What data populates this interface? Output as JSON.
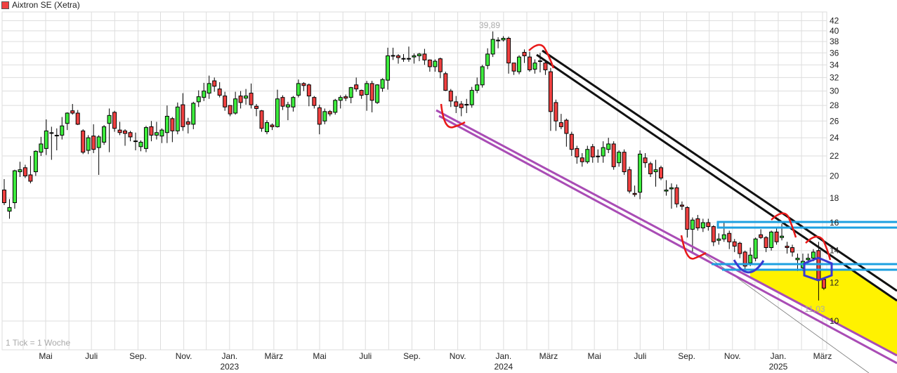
{
  "chart_data": {
    "type": "candlestick",
    "title": "Aixtron SE (Xetra)",
    "interval_note": "1 Tick = 1 Woche",
    "y_scale": "log",
    "ylim": [
      8.6,
      43
    ],
    "grid": true,
    "colors": {
      "up": "#3ded3d",
      "down": "#f04040",
      "legend": "#f04040"
    },
    "y_ticks": [
      42,
      40,
      38,
      36,
      34,
      32,
      30,
      28,
      26,
      24,
      22,
      20,
      18,
      16,
      14,
      12,
      10
    ],
    "x_ticks": [
      {
        "label": "Mai",
        "date": "2022-05",
        "year": ""
      },
      {
        "label": "Juli",
        "date": "2022-07",
        "year": ""
      },
      {
        "label": "Sep.",
        "date": "2022-09",
        "year": ""
      },
      {
        "label": "Nov.",
        "date": "2022-11",
        "year": ""
      },
      {
        "label": "Jan.",
        "date": "2023-01",
        "year": "2023"
      },
      {
        "label": "März",
        "date": "2023-03",
        "year": ""
      },
      {
        "label": "Mai",
        "date": "2023-05",
        "year": ""
      },
      {
        "label": "Juli",
        "date": "2023-07",
        "year": ""
      },
      {
        "label": "Sep.",
        "date": "2023-09",
        "year": ""
      },
      {
        "label": "Nov.",
        "date": "2023-11",
        "year": ""
      },
      {
        "label": "Jan.",
        "date": "2024-01",
        "year": "2024"
      },
      {
        "label": "März",
        "date": "2024-03",
        "year": ""
      },
      {
        "label": "Mai",
        "date": "2024-05",
        "year": ""
      },
      {
        "label": "Juli",
        "date": "2024-07",
        "year": ""
      },
      {
        "label": "Sep.",
        "date": "2024-09",
        "year": ""
      },
      {
        "label": "Nov.",
        "date": "2024-11",
        "year": ""
      },
      {
        "label": "Jan.",
        "date": "2025-01",
        "year": "2025"
      },
      {
        "label": "März",
        "date": "2025-03",
        "year": ""
      }
    ],
    "extreme_labels": {
      "high": "39,89",
      "low": "11,03"
    },
    "candles_ohlc": [
      [
        18.7,
        19.7,
        17.4,
        17.6
      ],
      [
        16.9,
        17.9,
        16.3,
        17.2
      ],
      [
        17.6,
        20.6,
        17.1,
        20.5
      ],
      [
        20.4,
        21.4,
        19.9,
        20.6
      ],
      [
        20.8,
        21.1,
        19.8,
        20.0
      ],
      [
        20.1,
        22.0,
        19.3,
        19.5
      ],
      [
        20.4,
        22.6,
        20.0,
        22.5
      ],
      [
        22.4,
        24.1,
        22.0,
        23.3
      ],
      [
        22.8,
        26.2,
        22.1,
        24.8
      ],
      [
        24.6,
        25.3,
        21.6,
        24.5
      ],
      [
        24.2,
        25.1,
        22.6,
        24.3
      ],
      [
        24.3,
        26.5,
        23.8,
        25.4
      ],
      [
        25.7,
        27.1,
        24.9,
        27.0
      ],
      [
        27.3,
        28.2,
        26.8,
        27.0
      ],
      [
        27.0,
        27.4,
        25.5,
        25.6
      ],
      [
        24.8,
        25.0,
        22.2,
        22.4
      ],
      [
        22.6,
        24.3,
        22.2,
        24.0
      ],
      [
        24.2,
        25.6,
        22.3,
        22.7
      ],
      [
        22.9,
        24.3,
        20.1,
        24.1
      ],
      [
        23.5,
        25.5,
        23.2,
        25.3
      ],
      [
        25.7,
        27.6,
        22.4,
        26.7
      ],
      [
        27.1,
        27.3,
        24.7,
        25.1
      ],
      [
        24.9,
        25.9,
        24.3,
        24.6
      ],
      [
        24.8,
        25.0,
        23.1,
        24.5
      ],
      [
        24.6,
        24.8,
        23.6,
        24.1
      ],
      [
        23.6,
        24.6,
        22.6,
        23.6
      ],
      [
        23.0,
        23.7,
        22.5,
        23.5
      ],
      [
        22.8,
        25.4,
        22.4,
        25.2
      ],
      [
        25.3,
        26.0,
        23.6,
        24.3
      ],
      [
        24.3,
        25.9,
        23.8,
        24.6
      ],
      [
        24.2,
        25.1,
        23.4,
        24.9
      ],
      [
        24.6,
        28.0,
        23.4,
        26.6
      ],
      [
        26.3,
        26.5,
        23.5,
        24.8
      ],
      [
        24.8,
        28.4,
        24.4,
        27.8
      ],
      [
        28.1,
        29.7,
        24.8,
        25.3
      ],
      [
        25.9,
        26.4,
        24.5,
        25.6
      ],
      [
        25.6,
        28.5,
        25.0,
        28.3
      ],
      [
        28.5,
        30.1,
        27.8,
        29.2
      ],
      [
        29.1,
        31.2,
        28.6,
        30.0
      ],
      [
        29.7,
        32.3,
        28.9,
        31.1
      ],
      [
        31.5,
        32.0,
        29.9,
        30.7
      ],
      [
        30.3,
        31.3,
        29.1,
        29.4
      ],
      [
        29.3,
        29.9,
        27.3,
        27.8
      ],
      [
        28.0,
        28.0,
        26.6,
        26.9
      ],
      [
        27.0,
        29.9,
        26.8,
        28.9
      ],
      [
        29.3,
        30.0,
        27.6,
        28.4
      ],
      [
        29.0,
        30.3,
        28.1,
        29.3
      ],
      [
        29.7,
        31.1,
        27.6,
        28.1
      ],
      [
        27.9,
        28.2,
        26.6,
        27.6
      ],
      [
        27.3,
        27.4,
        24.7,
        25.1
      ],
      [
        24.7,
        26.1,
        24.4,
        25.8
      ],
      [
        25.5,
        25.7,
        24.9,
        25.3
      ],
      [
        25.3,
        30.2,
        25.2,
        28.9
      ],
      [
        29.1,
        29.4,
        27.4,
        27.9
      ],
      [
        27.8,
        28.5,
        26.1,
        28.1
      ],
      [
        27.8,
        29.3,
        27.2,
        29.1
      ],
      [
        29.4,
        31.7,
        29.1,
        31.1
      ],
      [
        31.1,
        31.3,
        30.0,
        30.8
      ],
      [
        30.9,
        31.1,
        27.9,
        29.3
      ],
      [
        29.1,
        29.3,
        27.6,
        28.0
      ],
      [
        27.7,
        28.1,
        24.4,
        25.6
      ],
      [
        26.0,
        27.6,
        25.6,
        27.2
      ],
      [
        27.2,
        27.4,
        26.6,
        26.9
      ],
      [
        27.1,
        28.9,
        26.8,
        28.7
      ],
      [
        28.7,
        29.4,
        27.6,
        29.1
      ],
      [
        29.2,
        29.5,
        28.6,
        29.0
      ],
      [
        29.1,
        30.6,
        28.3,
        30.5
      ],
      [
        30.9,
        32.0,
        29.9,
        30.3
      ],
      [
        30.1,
        30.2,
        28.9,
        29.4
      ],
      [
        29.5,
        31.5,
        27.3,
        31.1
      ],
      [
        31.1,
        31.5,
        27.1,
        28.7
      ],
      [
        28.4,
        31.0,
        28.2,
        30.9
      ],
      [
        30.4,
        31.9,
        29.9,
        31.7
      ],
      [
        31.6,
        36.9,
        30.2,
        35.5
      ],
      [
        35.5,
        36.9,
        34.8,
        35.5
      ],
      [
        35.5,
        35.8,
        34.2,
        35.2
      ],
      [
        35.0,
        35.8,
        34.5,
        35.0
      ],
      [
        35.0,
        37.1,
        34.5,
        35.0
      ],
      [
        35.3,
        35.9,
        34.2,
        35.5
      ],
      [
        35.5,
        36.0,
        34.6,
        35.8
      ],
      [
        35.8,
        36.7,
        34.0,
        34.8
      ],
      [
        34.8,
        34.9,
        32.9,
        33.7
      ],
      [
        33.7,
        34.9,
        32.9,
        34.6
      ],
      [
        35.0,
        35.2,
        31.9,
        32.9
      ],
      [
        32.6,
        32.9,
        30.0,
        30.1
      ],
      [
        30.0,
        30.3,
        27.8,
        28.6
      ],
      [
        28.5,
        29.3,
        27.0,
        27.9
      ],
      [
        28.2,
        28.6,
        26.6,
        27.7
      ],
      [
        28.1,
        28.9,
        27.0,
        28.1
      ],
      [
        28.1,
        30.6,
        27.7,
        30.1
      ],
      [
        30.1,
        32.0,
        29.7,
        30.9
      ],
      [
        30.9,
        34.0,
        30.5,
        33.7
      ],
      [
        33.9,
        36.8,
        33.3,
        35.8
      ],
      [
        35.8,
        39.89,
        35.3,
        38.4
      ],
      [
        38.2,
        38.8,
        36.8,
        38.2
      ],
      [
        38.3,
        39.0,
        38.0,
        38.6
      ],
      [
        38.6,
        38.9,
        32.6,
        34.3
      ],
      [
        34.3,
        34.3,
        32.4,
        33.0
      ],
      [
        32.9,
        35.6,
        32.5,
        35.3
      ],
      [
        36.1,
        36.6,
        34.3,
        35.5
      ],
      [
        35.3,
        36.2,
        32.9,
        33.2
      ],
      [
        33.3,
        34.9,
        32.6,
        34.3
      ],
      [
        34.6,
        36.0,
        32.8,
        34.6
      ],
      [
        34.3,
        34.7,
        32.4,
        33.2
      ],
      [
        32.9,
        33.5,
        24.8,
        27.2
      ],
      [
        28.4,
        28.8,
        24.8,
        26.0
      ],
      [
        25.8,
        26.9,
        25.0,
        25.3
      ],
      [
        26.1,
        26.3,
        23.0,
        24.5
      ],
      [
        24.4,
        24.7,
        22.0,
        22.7
      ],
      [
        22.8,
        23.1,
        21.2,
        21.9
      ],
      [
        21.8,
        22.3,
        20.9,
        21.4
      ],
      [
        21.4,
        23.1,
        21.2,
        22.7
      ],
      [
        23.0,
        23.3,
        21.3,
        21.9
      ],
      [
        22.0,
        22.7,
        21.3,
        21.9
      ],
      [
        22.0,
        23.6,
        21.3,
        22.9
      ],
      [
        22.7,
        24.0,
        22.3,
        23.3
      ],
      [
        23.3,
        23.6,
        20.6,
        20.9
      ],
      [
        21.3,
        22.6,
        20.9,
        22.4
      ],
      [
        22.4,
        22.7,
        20.1,
        20.4
      ],
      [
        20.6,
        20.9,
        18.4,
        18.6
      ],
      [
        18.4,
        19.1,
        18.1,
        18.3
      ],
      [
        18.5,
        22.6,
        17.9,
        22.2
      ],
      [
        21.8,
        22.3,
        20.8,
        21.3
      ],
      [
        21.2,
        21.4,
        19.9,
        20.2
      ],
      [
        20.4,
        21.6,
        19.0,
        20.6
      ],
      [
        20.8,
        21.0,
        19.6,
        19.8
      ],
      [
        18.6,
        19.6,
        18.2,
        18.7
      ],
      [
        18.8,
        19.3,
        17.1,
        18.9
      ],
      [
        18.9,
        19.2,
        17.2,
        17.5
      ],
      [
        17.4,
        17.7,
        17.0,
        17.3
      ],
      [
        17.2,
        17.3,
        14.9,
        15.5
      ],
      [
        15.5,
        16.4,
        13.9,
        16.2
      ],
      [
        16.3,
        16.6,
        15.4,
        15.6
      ],
      [
        15.6,
        16.3,
        15.3,
        16.0
      ],
      [
        16.0,
        16.3,
        15.4,
        15.7
      ],
      [
        15.7,
        15.8,
        14.3,
        14.6
      ],
      [
        14.7,
        15.2,
        14.4,
        14.8
      ],
      [
        14.8,
        16.0,
        14.6,
        15.1
      ],
      [
        15.2,
        15.4,
        14.1,
        14.6
      ],
      [
        14.6,
        14.8,
        13.9,
        14.3
      ],
      [
        14.5,
        14.6,
        13.5,
        13.8
      ],
      [
        13.9,
        14.0,
        12.8,
        13.0
      ],
      [
        13.2,
        14.2,
        13.0,
        13.7
      ],
      [
        13.5,
        14.9,
        13.3,
        14.8
      ],
      [
        15.1,
        15.5,
        14.8,
        14.9
      ],
      [
        14.9,
        15.0,
        13.9,
        14.2
      ],
      [
        14.2,
        15.4,
        14.0,
        15.3
      ],
      [
        15.3,
        15.6,
        14.4,
        14.6
      ],
      [
        14.9,
        15.9,
        14.7,
        15.0
      ],
      [
        14.3,
        14.6,
        13.8,
        14.2
      ],
      [
        14.2,
        14.4,
        13.6,
        13.9
      ],
      [
        13.4,
        13.8,
        12.7,
        13.5
      ],
      [
        12.9,
        13.8,
        12.7,
        13.3
      ],
      [
        13.4,
        13.8,
        13.1,
        13.5
      ],
      [
        13.5,
        14.1,
        13.3,
        13.9
      ],
      [
        14.0,
        14.6,
        11.03,
        12.2
      ],
      [
        12.2,
        12.3,
        11.6,
        11.7
      ]
    ]
  }
}
